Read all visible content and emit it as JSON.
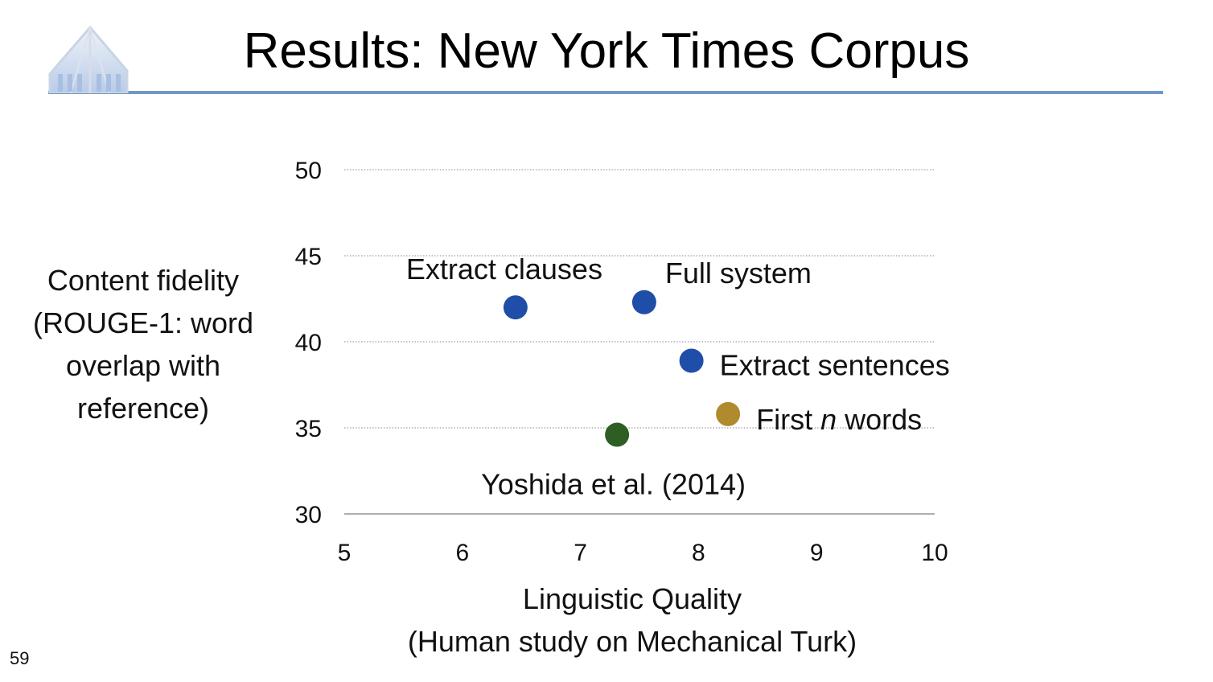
{
  "slide": {
    "title": "Results: New York Times Corpus",
    "number": "59"
  },
  "chart_data": {
    "type": "scatter",
    "title": "",
    "xlabel_lines": [
      "Linguistic Quality",
      "(Human study on Mechanical Turk)"
    ],
    "ylabel_lines": [
      "Content fidelity",
      "(ROUGE-1: word",
      "overlap with",
      "reference)"
    ],
    "xlim": [
      5,
      10
    ],
    "ylim": [
      30,
      50
    ],
    "xticks": [
      5,
      6,
      7,
      8,
      9,
      10
    ],
    "yticks": [
      30,
      35,
      40,
      45,
      50
    ],
    "grid": "horizontal dotted",
    "legend": "none (points labeled directly)",
    "points": [
      {
        "label": "Extract clauses",
        "x": 6.45,
        "y": 42.0,
        "color": "#1f4ea8"
      },
      {
        "label": "Full system",
        "x": 7.54,
        "y": 42.3,
        "color": "#1f4ea8"
      },
      {
        "label": "Extract sentences",
        "x": 7.94,
        "y": 38.9,
        "color": "#1f4ea8"
      },
      {
        "label_parts": [
          "First ",
          "n",
          " words"
        ],
        "x": 8.25,
        "y": 35.8,
        "color": "#b08a2e"
      },
      {
        "label": "Yoshida et al. (2014)",
        "x": 7.31,
        "y": 34.6,
        "color": "#2e5e24"
      }
    ]
  }
}
